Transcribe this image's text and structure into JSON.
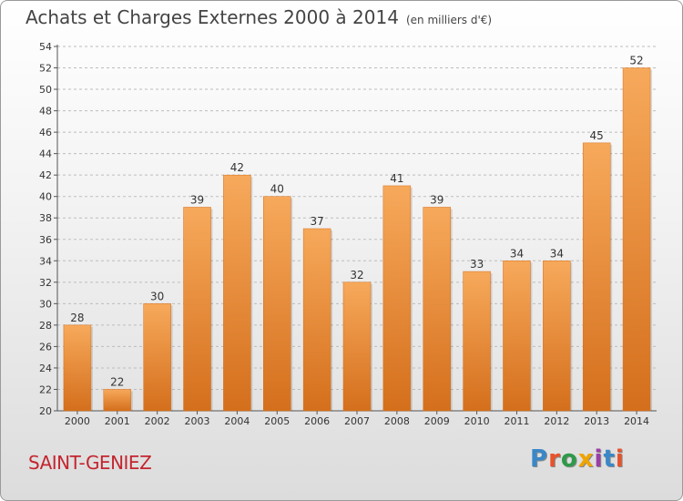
{
  "header": {
    "title": "Achats et Charges Externes 2000 à 2014",
    "unit": "(en milliers d'€)"
  },
  "footer": {
    "town": "SAINT-GENIEZ",
    "logo_letters": [
      "P",
      "r",
      "o",
      "x",
      "i",
      "t",
      "i"
    ],
    "logo_colors": [
      "#3a87c8",
      "#e8532b",
      "#2e9a48",
      "#f0a500",
      "#9b3fa6",
      "#3a87c8",
      "#e8532b"
    ]
  },
  "colors": {
    "bar": "#f0923a",
    "bar_dark": "#d46f1c",
    "bar_light": "#f7a95b",
    "grid": "#bdbdbd"
  },
  "chart_data": {
    "type": "bar",
    "categories": [
      "2000",
      "2001",
      "2002",
      "2003",
      "2004",
      "2005",
      "2006",
      "2007",
      "2008",
      "2009",
      "2010",
      "2011",
      "2012",
      "2013",
      "2014"
    ],
    "values": [
      28,
      22,
      30,
      39,
      42,
      40,
      37,
      32,
      41,
      39,
      33,
      34,
      34,
      45,
      52
    ],
    "ylim": [
      20,
      54
    ],
    "yticks": [
      20,
      22,
      24,
      26,
      28,
      30,
      32,
      34,
      36,
      38,
      40,
      42,
      44,
      46,
      48,
      50,
      52,
      54
    ],
    "grid": true,
    "xlabel": "",
    "ylabel": ""
  }
}
